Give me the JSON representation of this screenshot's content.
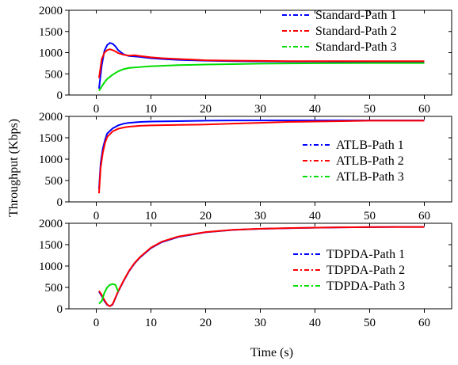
{
  "figure": {
    "xlabel": "Time (s)",
    "ylabel": "Throughput (Kbps)"
  },
  "chart_data": [
    {
      "type": "line",
      "xlim": [
        -5,
        65
      ],
      "ylim": [
        0,
        2000
      ],
      "xticks": [
        0,
        10,
        20,
        30,
        40,
        50,
        60
      ],
      "yticks": [
        0,
        500,
        1000,
        1500,
        2000
      ],
      "xlabel": "",
      "ylabel": "",
      "legend_position": "top-right",
      "series": [
        {
          "name": "Standard-Path 1",
          "color": "#0000ff",
          "dash": "6 3 2 3",
          "x": [
            0.5,
            1,
            1.5,
            2,
            2.5,
            3,
            3.5,
            4,
            5,
            6,
            7,
            8,
            10,
            12,
            15,
            20,
            25,
            30,
            35,
            40,
            45,
            50,
            55,
            60
          ],
          "y": [
            150,
            700,
            1050,
            1180,
            1230,
            1210,
            1150,
            1060,
            960,
            920,
            910,
            900,
            870,
            850,
            830,
            810,
            800,
            795,
            790,
            790,
            785,
            785,
            780,
            780
          ]
        },
        {
          "name": "Standard-Path 2",
          "color": "#ff0000",
          "dash": "6 3 2 3",
          "x": [
            0.5,
            1,
            1.5,
            2,
            2.5,
            3,
            3.5,
            4,
            5,
            6,
            7,
            8,
            10,
            12,
            15,
            20,
            25,
            30,
            35,
            40,
            45,
            50,
            55,
            60
          ],
          "y": [
            400,
            850,
            1000,
            1060,
            1080,
            1060,
            1030,
            990,
            950,
            930,
            940,
            920,
            890,
            870,
            850,
            820,
            810,
            805,
            800,
            800,
            800,
            800,
            800,
            800
          ]
        },
        {
          "name": "Standard-Path 3",
          "color": "#00dd00",
          "dash": "6 3 2 3",
          "x": [
            0.5,
            1,
            1.5,
            2,
            3,
            4,
            5,
            6,
            8,
            10,
            12,
            15,
            20,
            25,
            30,
            35,
            40,
            45,
            50,
            55,
            60
          ],
          "y": [
            100,
            200,
            300,
            380,
            480,
            560,
            610,
            640,
            660,
            680,
            690,
            705,
            720,
            730,
            740,
            745,
            750,
            752,
            755,
            755,
            755
          ]
        }
      ]
    },
    {
      "type": "line",
      "xlim": [
        -5,
        65
      ],
      "ylim": [
        0,
        2000
      ],
      "xticks": [
        0,
        10,
        20,
        30,
        40,
        50,
        60
      ],
      "yticks": [
        0,
        500,
        1000,
        1500,
        2000
      ],
      "xlabel": "",
      "ylabel": "",
      "legend_position": "right",
      "series": [
        {
          "name": "ATLB-Path 1",
          "color": "#0000ff",
          "dash": "6 3 2 3",
          "x": [
            0.5,
            0.8,
            1.2,
            1.6,
            2,
            3,
            4,
            5,
            6,
            8,
            10,
            15,
            20,
            25,
            30,
            35,
            40,
            45,
            50,
            55,
            60
          ],
          "y": [
            300,
            900,
            1250,
            1450,
            1600,
            1720,
            1790,
            1830,
            1850,
            1870,
            1880,
            1890,
            1900,
            1905,
            1905,
            1905,
            1905,
            1905,
            1905,
            1905,
            1905
          ]
        },
        {
          "name": "ATLB-Path 2",
          "color": "#ff0000",
          "dash": "6 3 2 3",
          "x": [
            0.5,
            0.8,
            1.2,
            1.6,
            2,
            3,
            4,
            5,
            6,
            8,
            10,
            15,
            20,
            25,
            30,
            35,
            40,
            45,
            50,
            55,
            60
          ],
          "y": [
            200,
            800,
            1150,
            1380,
            1520,
            1650,
            1710,
            1740,
            1760,
            1780,
            1790,
            1800,
            1810,
            1830,
            1850,
            1870,
            1880,
            1890,
            1900,
            1900,
            1900
          ]
        },
        {
          "name": "ATLB-Path 3",
          "color": "#00dd00",
          "dash": "6 3 2 3",
          "x": [],
          "y": []
        }
      ]
    },
    {
      "type": "line",
      "xlim": [
        -5,
        65
      ],
      "ylim": [
        0,
        2000
      ],
      "xticks": [
        0,
        10,
        20,
        30,
        40,
        50,
        60
      ],
      "yticks": [
        0,
        500,
        1000,
        1500,
        2000
      ],
      "xlabel": "",
      "ylabel": "",
      "legend_position": "right",
      "series": [
        {
          "name": "TDPDA-Path 1",
          "color": "#0000ff",
          "dash": "6 3 2 3",
          "x": [
            0.5,
            1,
            1.5,
            2,
            2.5,
            3,
            3.5,
            4,
            5,
            6,
            7,
            8,
            10,
            12,
            15,
            20,
            25,
            30,
            35,
            40,
            45,
            50,
            55,
            60
          ],
          "y": [
            400,
            300,
            180,
            90,
            60,
            100,
            250,
            400,
            650,
            880,
            1060,
            1200,
            1420,
            1560,
            1680,
            1790,
            1845,
            1870,
            1885,
            1895,
            1905,
            1910,
            1915,
            1915
          ]
        },
        {
          "name": "TDPDA-Path 2",
          "color": "#ff0000",
          "dash": "6 3 2 3",
          "x": [
            0.5,
            1,
            1.5,
            2,
            2.5,
            3,
            3.5,
            4,
            5,
            6,
            7,
            8,
            10,
            12,
            15,
            20,
            25,
            30,
            35,
            40,
            45,
            50,
            55,
            60
          ],
          "y": [
            420,
            320,
            200,
            100,
            60,
            110,
            260,
            410,
            660,
            890,
            1070,
            1210,
            1430,
            1570,
            1690,
            1795,
            1848,
            1872,
            1887,
            1897,
            1906,
            1911,
            1915,
            1915
          ]
        },
        {
          "name": "TDPDA-Path 3",
          "color": "#00dd00",
          "dash": "6 3 2 3",
          "x": [
            0.5,
            1,
            1.5,
            2,
            2.5,
            3,
            3.5,
            4
          ],
          "y": [
            120,
            180,
            380,
            500,
            560,
            580,
            560,
            400
          ]
        }
      ]
    }
  ]
}
